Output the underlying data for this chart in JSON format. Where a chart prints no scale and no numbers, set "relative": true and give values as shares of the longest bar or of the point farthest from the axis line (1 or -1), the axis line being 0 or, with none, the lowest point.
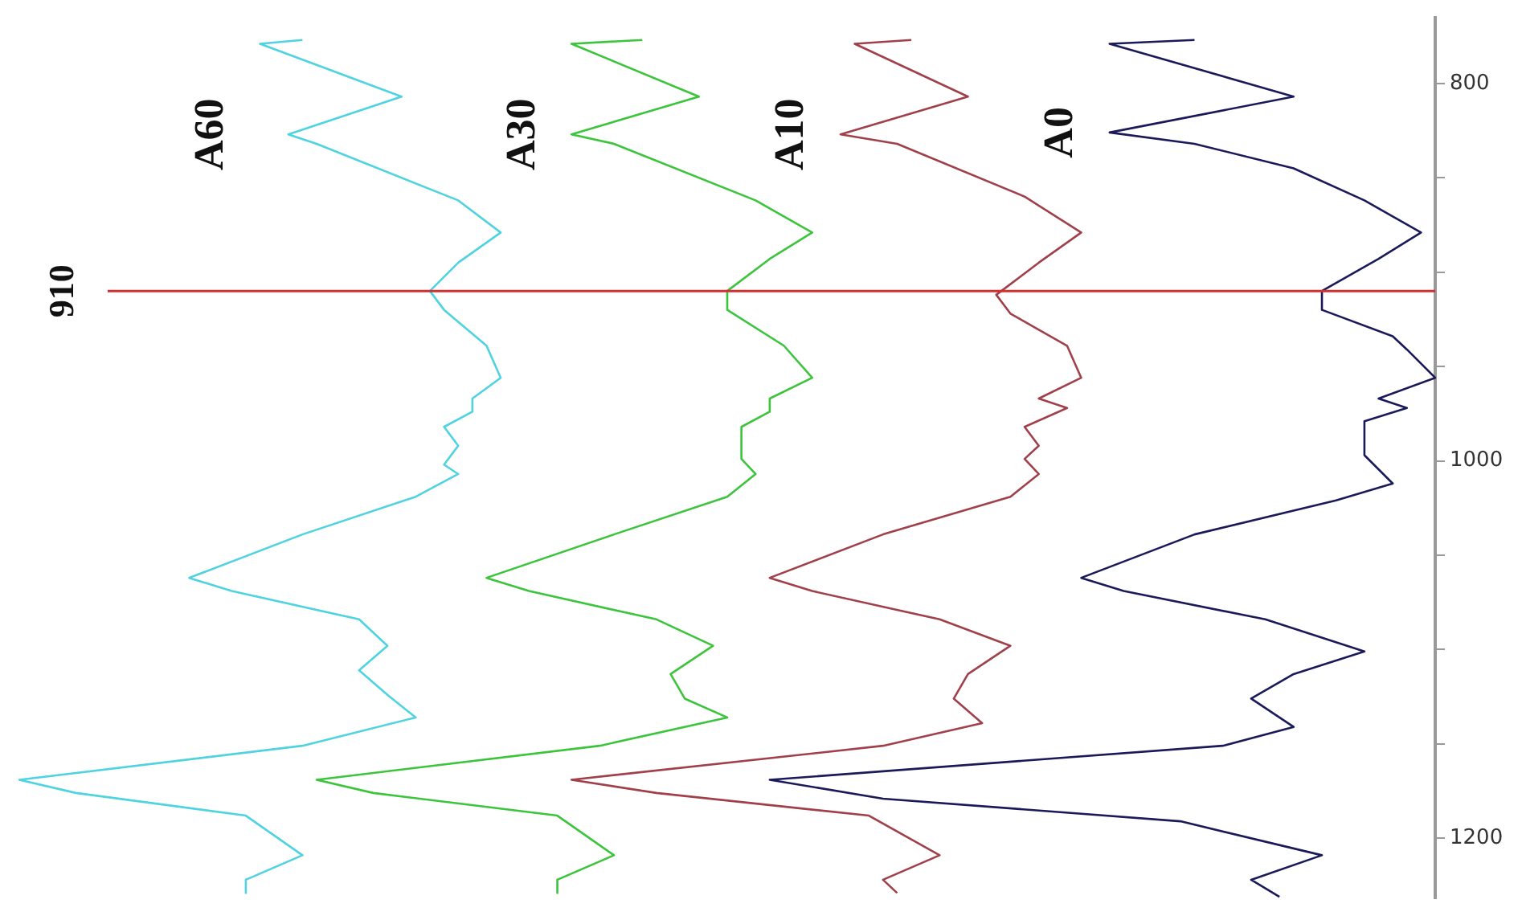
{
  "chart_data": {
    "type": "line",
    "relative": true,
    "legend": false,
    "grid": false,
    "orientation": "horizontal",
    "ylim": [
      1232,
      765
    ],
    "yticks": [
      800,
      {
        "value": 850,
        "label": null
      },
      {
        "value": 900,
        "label": null
      },
      {
        "value": 950,
        "label": null
      },
      1000,
      {
        "value": 1050,
        "label": null
      },
      {
        "value": 1100,
        "label": null
      },
      {
        "value": 1150,
        "label": null
      },
      1200
    ],
    "ref_lines": [
      {
        "axis": "y",
        "value": 910,
        "label": "910",
        "color": "#d03030"
      }
    ],
    "series": [
      {
        "name": "A60",
        "color": "#4fd3e0",
        "x": [
          777,
          779,
          807,
          827,
          832,
          862,
          879,
          895,
          910,
          920,
          939,
          956,
          967,
          974,
          982,
          992,
          1002,
          1007,
          1019,
          1039,
          1062,
          1069,
          1084,
          1098,
          1111,
          1124,
          1136,
          1151,
          1169,
          1176,
          1188,
          1209,
          1222,
          1229
        ],
        "values": [
          0.2,
          0.17,
          0.27,
          0.19,
          0.21,
          0.31,
          0.34,
          0.31,
          0.29,
          0.3,
          0.33,
          0.34,
          0.32,
          0.32,
          0.3,
          0.31,
          0.3,
          0.31,
          0.28,
          0.2,
          0.12,
          0.15,
          0.24,
          0.26,
          0.24,
          0.26,
          0.28,
          0.2,
          0.0,
          0.04,
          0.16,
          0.2,
          0.16,
          0.16
        ]
      },
      {
        "name": "A30",
        "color": "#3cc43c",
        "x": [
          777,
          779,
          807,
          827,
          832,
          862,
          879,
          893,
          910,
          920,
          939,
          956,
          967,
          974,
          982,
          992,
          999,
          1007,
          1019,
          1039,
          1062,
          1069,
          1084,
          1098,
          1113,
          1126,
          1136,
          1151,
          1169,
          1176,
          1188,
          1209,
          1222,
          1229
        ],
        "values": [
          0.44,
          0.39,
          0.48,
          0.39,
          0.42,
          0.52,
          0.56,
          0.53,
          0.5,
          0.5,
          0.54,
          0.56,
          0.53,
          0.53,
          0.51,
          0.51,
          0.51,
          0.52,
          0.5,
          0.42,
          0.33,
          0.36,
          0.45,
          0.49,
          0.46,
          0.47,
          0.5,
          0.41,
          0.21,
          0.25,
          0.38,
          0.42,
          0.38,
          0.38
        ]
      },
      {
        "name": "A10",
        "color": "#a0404a",
        "x": [
          777,
          779,
          807,
          827,
          832,
          860,
          879,
          895,
          912,
          922,
          939,
          956,
          967,
          972,
          982,
          992,
          999,
          1007,
          1019,
          1039,
          1062,
          1069,
          1084,
          1098,
          1113,
          1126,
          1139,
          1151,
          1169,
          1176,
          1188,
          1209,
          1222,
          1229
        ],
        "values": [
          0.63,
          0.59,
          0.67,
          0.58,
          0.62,
          0.71,
          0.75,
          0.72,
          0.69,
          0.7,
          0.74,
          0.75,
          0.72,
          0.74,
          0.71,
          0.72,
          0.71,
          0.72,
          0.7,
          0.61,
          0.53,
          0.56,
          0.65,
          0.7,
          0.67,
          0.66,
          0.68,
          0.61,
          0.39,
          0.45,
          0.6,
          0.65,
          0.61,
          0.62
        ]
      },
      {
        "name": "A0",
        "color": "#1a1a5a",
        "x": [
          777,
          779,
          807,
          826,
          832,
          845,
          862,
          879,
          893,
          910,
          920,
          934,
          941,
          956,
          967,
          972,
          979,
          989,
          997,
          1012,
          1021,
          1039,
          1062,
          1069,
          1084,
          1101,
          1113,
          1126,
          1141,
          1151,
          1169,
          1179,
          1191,
          1209,
          1222,
          1231
        ],
        "values": [
          0.83,
          0.77,
          0.9,
          0.77,
          0.83,
          0.9,
          0.95,
          0.99,
          0.96,
          0.92,
          0.92,
          0.97,
          0.98,
          1.0,
          0.96,
          0.98,
          0.95,
          0.95,
          0.95,
          0.97,
          0.93,
          0.83,
          0.75,
          0.78,
          0.88,
          0.95,
          0.9,
          0.87,
          0.9,
          0.85,
          0.53,
          0.61,
          0.82,
          0.92,
          0.87,
          0.89
        ]
      }
    ]
  }
}
